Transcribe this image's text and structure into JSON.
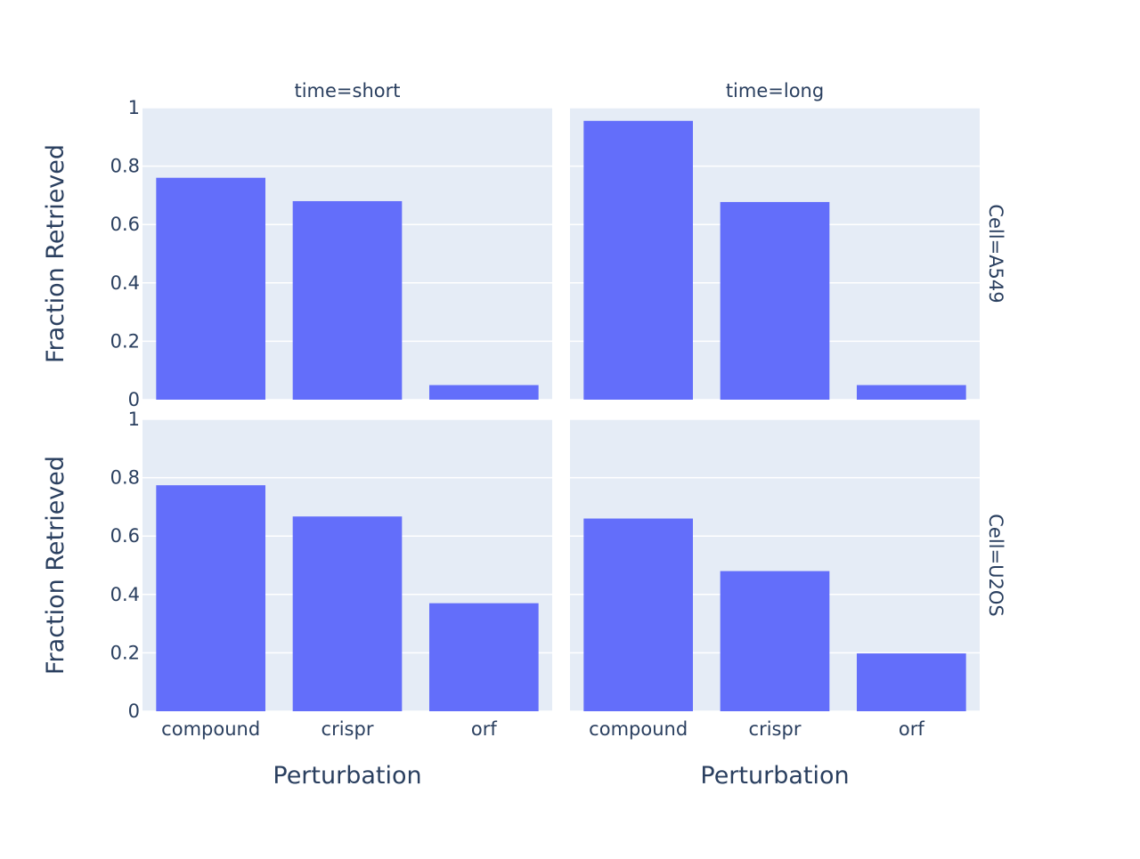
{
  "chart_data": {
    "type": "bar",
    "facet_layout": "2x2 grid",
    "categories": [
      "compound",
      "crispr",
      "orf"
    ],
    "xlabel": "Perturbation",
    "ylabel": "Fraction Retrieved",
    "ylim": [
      0,
      1
    ],
    "yticks": [
      "0",
      "0.2",
      "0.4",
      "0.6",
      "0.8",
      "1"
    ],
    "grid": true,
    "bar_color": "#636efa",
    "plot_background": "#e5ecf6",
    "columns": [
      "time=short",
      "time=long"
    ],
    "rows": [
      "Cell=A549",
      "Cell=U2OS"
    ],
    "panels": [
      {
        "row": "Cell=A549",
        "column": "time=short",
        "values": [
          0.76,
          0.68,
          0.05
        ]
      },
      {
        "row": "Cell=A549",
        "column": "time=long",
        "values": [
          0.955,
          0.677,
          0.05
        ]
      },
      {
        "row": "Cell=U2OS",
        "column": "time=short",
        "values": [
          0.774,
          0.667,
          0.37
        ]
      },
      {
        "row": "Cell=U2OS",
        "column": "time=long",
        "values": [
          0.66,
          0.48,
          0.198
        ]
      }
    ]
  }
}
